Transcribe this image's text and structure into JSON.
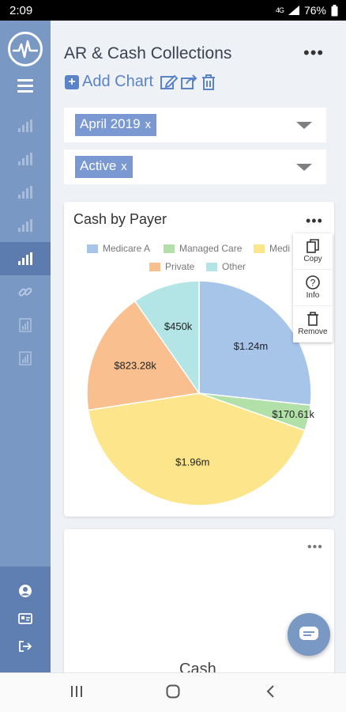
{
  "status_bar": {
    "time": "2:09",
    "network": "4G",
    "battery": "76%"
  },
  "app": {
    "title": "AR & Cash Collections",
    "add_chart_label": "Add Chart",
    "more_symbol": "•••"
  },
  "filters": [
    {
      "value": "April 2019",
      "remove": "x"
    },
    {
      "value": "Active",
      "remove": "x"
    }
  ],
  "card": {
    "title": "Cash by Payer",
    "more_symbol": "•••",
    "menu": [
      {
        "label": "Copy",
        "icon": "copy-icon"
      },
      {
        "label": "Info",
        "icon": "info-icon"
      },
      {
        "label": "Remove",
        "icon": "trash-icon"
      }
    ]
  },
  "card2": {
    "more_symbol": "•••",
    "partial_title": "Cash"
  },
  "chart_data": {
    "type": "pie",
    "title": "Cash by Payer",
    "legend_position": "top",
    "slices": [
      {
        "name": "Medicare A",
        "label": "$1.24m",
        "value": 1.24,
        "color": "#a7c5e9"
      },
      {
        "name": "Managed Care",
        "label": "$170.61k",
        "value": 0.17061,
        "color": "#b1e0a9"
      },
      {
        "name": "Medi",
        "label": "$1.96m",
        "value": 1.96,
        "color": "#fce58b"
      },
      {
        "name": "Private",
        "label": "$823.28k",
        "value": 0.82328,
        "color": "#f9bf8f"
      },
      {
        "name": "Other",
        "label": "$450k",
        "value": 0.45,
        "color": "#b3e4e6"
      }
    ]
  },
  "colors": {
    "sidebar": "#7a98c4",
    "sidebar_active": "#5c7cb0",
    "accent": "#5a83c8",
    "chip": "#7a98d2"
  }
}
